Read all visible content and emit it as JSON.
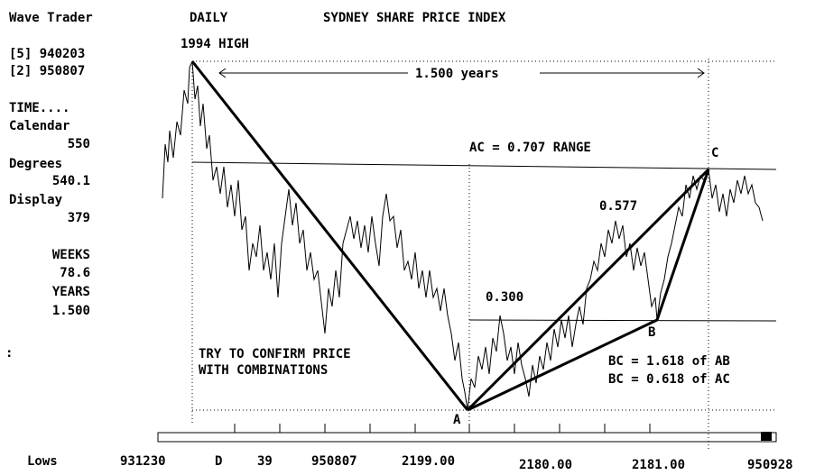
{
  "header": {
    "app": "Wave Trader",
    "period": "DAILY",
    "title": "SYDNEY SHARE PRICE INDEX"
  },
  "sidebar": {
    "dates": [
      "[5] 940203",
      "[2] 950807"
    ],
    "time_label": "TIME....",
    "calendar_label": "Calendar",
    "calendar": "550",
    "degrees_label": "Degrees",
    "degrees": "540.1",
    "display_label": "Display",
    "display": "379",
    "weeks_label": "WEEKS",
    "weeks": "78.6",
    "years_label": "YEARS",
    "years": "1.500"
  },
  "annotations": {
    "high": "1994 HIGH",
    "span": "1.500 years",
    "ac": "AC = 0.707 RANGE",
    "r577": "0.577",
    "r300": "0.300",
    "note": [
      "TRY TO CONFIRM PRICE",
      "WITH COMBINATIONS"
    ],
    "bc1": "BC = 1.618 of AB",
    "bc2": "BC = 0.618 of AC",
    "points": {
      "a": "A",
      "b": "B",
      "c": "C"
    }
  },
  "footer": [
    "Lows",
    "931230",
    "D",
    "39",
    "950807",
    "2199.00",
    "2180.00",
    "2181.00",
    "950928"
  ]
}
